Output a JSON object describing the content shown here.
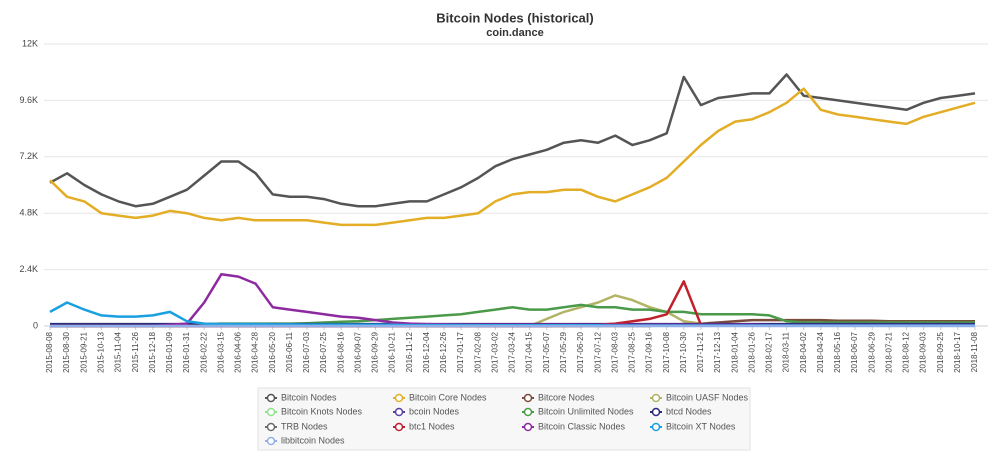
{
  "chart_data": {
    "type": "line",
    "title": "Bitcoin Nodes (historical)",
    "subtitle": "coin.dance",
    "categories": [
      "2015-08-08",
      "2015-08-30",
      "2015-09-21",
      "2015-10-13",
      "2015-11-04",
      "2015-11-26",
      "2015-12-18",
      "2016-01-09",
      "2016-01-31",
      "2016-02-22",
      "2016-03-15",
      "2016-04-06",
      "2016-04-28",
      "2016-05-20",
      "2016-06-11",
      "2016-07-03",
      "2016-07-25",
      "2016-08-16",
      "2016-09-07",
      "2016-09-29",
      "2016-10-21",
      "2016-11-12",
      "2016-12-04",
      "2016-12-26",
      "2017-01-17",
      "2017-02-08",
      "2017-03-02",
      "2017-03-24",
      "2017-04-15",
      "2017-05-07",
      "2017-05-29",
      "2017-06-20",
      "2017-07-12",
      "2017-08-03",
      "2017-08-25",
      "2017-09-16",
      "2017-10-08",
      "2017-10-30",
      "2017-11-21",
      "2017-12-13",
      "2018-01-04",
      "2018-01-26",
      "2018-02-17",
      "2018-03-11",
      "2018-04-02",
      "2018-04-24",
      "2018-05-16",
      "2018-06-07",
      "2018-06-29",
      "2018-07-21",
      "2018-08-12",
      "2018-09-03",
      "2018-09-25",
      "2018-10-17",
      "2018-11-08"
    ],
    "ylim": [
      0,
      12000
    ],
    "yticks": [
      0,
      {
        "value": 2400,
        "label": "2.4K"
      },
      {
        "value": 4800,
        "label": "4.8K"
      },
      {
        "value": 7200,
        "label": "7.2K"
      },
      {
        "value": 9600,
        "label": "9.6K"
      },
      {
        "value": 12000,
        "label": "12K"
      }
    ],
    "grid": true,
    "legend": "bottom",
    "series": [
      {
        "name": "Bitcoin Nodes",
        "color": "#555555",
        "values": [
          6100,
          6500,
          6000,
          5600,
          5300,
          5100,
          5200,
          5500,
          5800,
          6400,
          7000,
          7000,
          6500,
          5600,
          5500,
          5500,
          5400,
          5200,
          5100,
          5100,
          5200,
          5300,
          5300,
          5600,
          5900,
          6300,
          6800,
          7100,
          7300,
          7500,
          7800,
          7900,
          7800,
          8100,
          7700,
          7900,
          8200,
          10600,
          9400,
          9700,
          9800,
          9900,
          9900,
          10700,
          9800,
          9700,
          9600,
          9500,
          9400,
          9300,
          9200,
          9500,
          9700,
          9800,
          9900
        ]
      },
      {
        "name": "Bitcoin Core Nodes",
        "color": "#e3ad25",
        "values": [
          6200,
          5500,
          5300,
          4800,
          4700,
          4600,
          4700,
          4900,
          4800,
          4600,
          4500,
          4600,
          4500,
          4500,
          4500,
          4500,
          4400,
          4300,
          4300,
          4300,
          4400,
          4500,
          4600,
          4600,
          4700,
          4800,
          5300,
          5600,
          5700,
          5700,
          5800,
          5800,
          5500,
          5300,
          5600,
          5900,
          6300,
          7000,
          7700,
          8300,
          8700,
          8800,
          9100,
          9500,
          10100,
          9200,
          9000,
          8900,
          8800,
          8700,
          8600,
          8900,
          9100,
          9300,
          9500
        ]
      },
      {
        "name": "Bitcore Nodes",
        "color": "#7a4a3a",
        "values": [
          0,
          0,
          0,
          0,
          0,
          0,
          0,
          0,
          0,
          0,
          0,
          0,
          0,
          0,
          0,
          0,
          0,
          0,
          0,
          0,
          0,
          0,
          0,
          0,
          0,
          0,
          0,
          0,
          0,
          0,
          0,
          0,
          0,
          0,
          0,
          0,
          50,
          80,
          100,
          150,
          200,
          250,
          250,
          250,
          250,
          250,
          220,
          220,
          220,
          200,
          200,
          200,
          200,
          200,
          200
        ]
      },
      {
        "name": "Bitcoin UASF Nodes",
        "color": "#b3b366",
        "values": [
          0,
          0,
          0,
          0,
          0,
          0,
          0,
          0,
          0,
          0,
          0,
          0,
          0,
          0,
          0,
          0,
          0,
          0,
          0,
          0,
          0,
          0,
          0,
          0,
          0,
          0,
          0,
          0,
          0,
          300,
          600,
          800,
          1000,
          1300,
          1100,
          800,
          600,
          200,
          100,
          50,
          50,
          50,
          50,
          50,
          50,
          50,
          50,
          50,
          50,
          50,
          50,
          50,
          50,
          50,
          50
        ]
      },
      {
        "name": "Bitcoin Knots Nodes",
        "color": "#8fe38f",
        "values": [
          0,
          0,
          0,
          0,
          0,
          0,
          0,
          0,
          0,
          0,
          0,
          30,
          30,
          30,
          30,
          30,
          30,
          30,
          30,
          30,
          30,
          30,
          30,
          30,
          30,
          30,
          30,
          30,
          30,
          30,
          30,
          30,
          30,
          30,
          30,
          30,
          30,
          30,
          30,
          30,
          30,
          30,
          30,
          30,
          30,
          30,
          30,
          30,
          30,
          30,
          30,
          30,
          30,
          30,
          30
        ]
      },
      {
        "name": "bcoin Nodes",
        "color": "#5a3fa0",
        "values": [
          0,
          0,
          0,
          0,
          0,
          0,
          0,
          0,
          0,
          0,
          0,
          0,
          0,
          0,
          0,
          0,
          0,
          0,
          0,
          0,
          0,
          0,
          0,
          0,
          0,
          0,
          0,
          0,
          0,
          0,
          20,
          20,
          20,
          20,
          20,
          20,
          20,
          20,
          20,
          20,
          20,
          20,
          20,
          20,
          20,
          20,
          20,
          20,
          20,
          20,
          20,
          20,
          20,
          20,
          20
        ]
      },
      {
        "name": "Bitcoin Unlimited Nodes",
        "color": "#4a9a4a",
        "values": [
          0,
          0,
          0,
          0,
          0,
          0,
          0,
          0,
          50,
          80,
          100,
          100,
          100,
          100,
          100,
          120,
          150,
          180,
          200,
          250,
          300,
          350,
          400,
          450,
          500,
          600,
          700,
          800,
          700,
          700,
          800,
          900,
          800,
          800,
          700,
          700,
          600,
          600,
          500,
          500,
          500,
          500,
          450,
          200,
          150,
          150,
          150,
          150,
          150,
          150,
          150,
          150,
          150,
          150,
          150
        ]
      },
      {
        "name": "btcd Nodes",
        "color": "#2a2a7a",
        "values": [
          80,
          80,
          80,
          80,
          80,
          80,
          80,
          80,
          80,
          80,
          80,
          80,
          80,
          80,
          80,
          80,
          80,
          80,
          80,
          80,
          80,
          80,
          80,
          80,
          80,
          80,
          80,
          80,
          80,
          80,
          80,
          80,
          80,
          80,
          80,
          80,
          80,
          80,
          80,
          80,
          80,
          80,
          80,
          80,
          80,
          80,
          80,
          80,
          80,
          80,
          80,
          80,
          80,
          80,
          80
        ]
      },
      {
        "name": "TRB Nodes",
        "color": "#6b6b6b",
        "values": [
          10,
          10,
          10,
          10,
          10,
          10,
          10,
          10,
          10,
          10,
          10,
          10,
          10,
          10,
          10,
          10,
          10,
          10,
          10,
          10,
          10,
          10,
          10,
          10,
          10,
          10,
          10,
          10,
          10,
          10,
          10,
          10,
          10,
          10,
          10,
          10,
          10,
          10,
          10,
          10,
          10,
          10,
          10,
          10,
          10,
          10,
          10,
          10,
          10,
          10,
          10,
          10,
          10,
          10,
          10
        ]
      },
      {
        "name": "btc1 Nodes",
        "color": "#c0202a",
        "values": [
          0,
          0,
          0,
          0,
          0,
          0,
          0,
          0,
          0,
          0,
          0,
          0,
          0,
          0,
          0,
          0,
          0,
          0,
          0,
          0,
          0,
          0,
          0,
          0,
          0,
          0,
          0,
          0,
          0,
          0,
          0,
          0,
          50,
          100,
          200,
          300,
          500,
          1900,
          50,
          20,
          20,
          20,
          20,
          20,
          20,
          20,
          20,
          20,
          20,
          20,
          20,
          20,
          20,
          20,
          20
        ]
      },
      {
        "name": "Bitcoin Classic Nodes",
        "color": "#8e2aa0",
        "values": [
          0,
          0,
          0,
          0,
          0,
          0,
          0,
          50,
          100,
          1000,
          2200,
          2100,
          1800,
          800,
          700,
          600,
          500,
          400,
          350,
          250,
          150,
          100,
          80,
          70,
          60,
          60,
          60,
          60,
          60,
          60,
          60,
          50,
          50,
          50,
          50,
          50,
          50,
          50,
          50,
          50,
          50,
          50,
          40,
          40,
          40,
          40,
          40,
          40,
          40,
          40,
          40,
          40,
          40,
          40,
          40
        ]
      },
      {
        "name": "Bitcoin XT Nodes",
        "color": "#1aa0e0",
        "values": [
          600,
          1000,
          700,
          450,
          400,
          400,
          450,
          600,
          200,
          100,
          80,
          80,
          80,
          70,
          70,
          60,
          60,
          60,
          50,
          50,
          50,
          40,
          40,
          40,
          40,
          30,
          30,
          30,
          30,
          30,
          30,
          30,
          30,
          20,
          20,
          20,
          20,
          20,
          20,
          20,
          20,
          20,
          20,
          20,
          20,
          20,
          20,
          20,
          20,
          20,
          20,
          20,
          20,
          20,
          20
        ]
      },
      {
        "name": "libbitcoin Nodes",
        "color": "#8fb0e8",
        "values": [
          0,
          0,
          0,
          0,
          0,
          0,
          0,
          0,
          0,
          0,
          0,
          0,
          0,
          0,
          0,
          0,
          0,
          0,
          0,
          0,
          0,
          0,
          0,
          0,
          0,
          0,
          0,
          0,
          0,
          0,
          0,
          0,
          0,
          0,
          0,
          0,
          0,
          0,
          0,
          0,
          0,
          0,
          0,
          0,
          0,
          0,
          0,
          0,
          0,
          0,
          0,
          0,
          0,
          0,
          0
        ]
      }
    ]
  }
}
